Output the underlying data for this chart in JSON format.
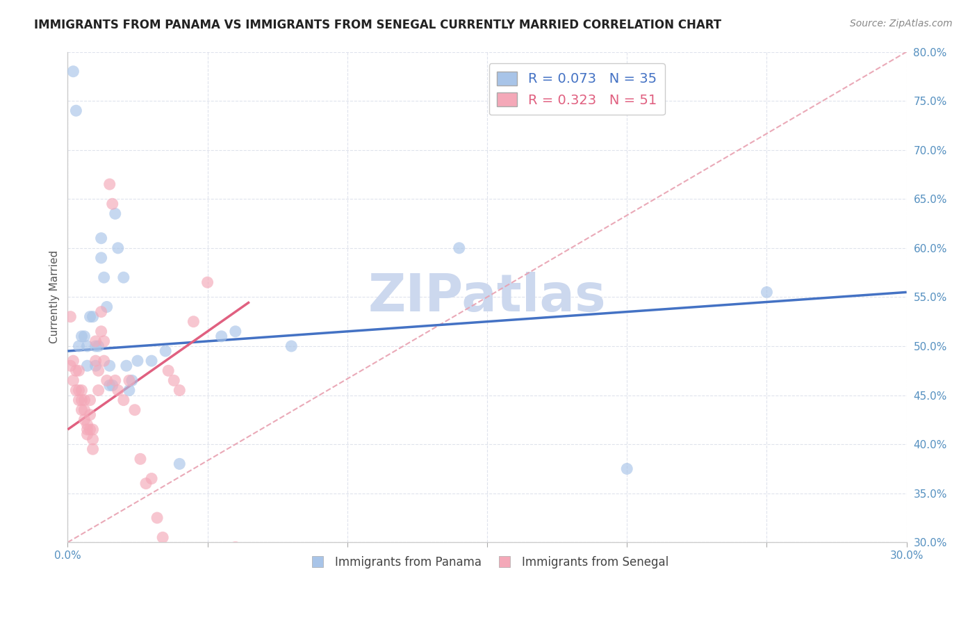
{
  "title": "IMMIGRANTS FROM PANAMA VS IMMIGRANTS FROM SENEGAL CURRENTLY MARRIED CORRELATION CHART",
  "source": "Source: ZipAtlas.com",
  "xlabel": "",
  "ylabel": "Currently Married",
  "xlim": [
    0.0,
    0.3
  ],
  "ylim": [
    0.3,
    0.8
  ],
  "xticks": [
    0.0,
    0.05,
    0.1,
    0.15,
    0.2,
    0.25,
    0.3
  ],
  "yticks": [
    0.3,
    0.35,
    0.4,
    0.45,
    0.5,
    0.55,
    0.6,
    0.65,
    0.7,
    0.75,
    0.8
  ],
  "ytick_labels": [
    "30.0%",
    "35.0%",
    "40.0%",
    "45.0%",
    "50.0%",
    "55.0%",
    "60.0%",
    "65.0%",
    "70.0%",
    "75.0%",
    "80.0%"
  ],
  "xtick_labels": [
    "0.0%",
    "",
    "",
    "",
    "",
    "",
    "30.0%"
  ],
  "panama_R": 0.073,
  "panama_N": 35,
  "senegal_R": 0.323,
  "senegal_N": 51,
  "panama_color": "#a8c4e8",
  "senegal_color": "#f4a8b8",
  "panama_line_color": "#4472c4",
  "senegal_line_color": "#e06080",
  "diagonal_color": "#e8a0b0",
  "background_color": "#ffffff",
  "watermark": "ZIPatlas",
  "watermark_color": "#ccd8ee",
  "panama_x": [
    0.002,
    0.003,
    0.004,
    0.005,
    0.006,
    0.007,
    0.007,
    0.008,
    0.009,
    0.01,
    0.01,
    0.011,
    0.012,
    0.012,
    0.013,
    0.014,
    0.015,
    0.015,
    0.016,
    0.017,
    0.018,
    0.02,
    0.021,
    0.022,
    0.023,
    0.025,
    0.03,
    0.035,
    0.04,
    0.055,
    0.06,
    0.08,
    0.14,
    0.2,
    0.25
  ],
  "panama_y": [
    0.78,
    0.74,
    0.5,
    0.51,
    0.51,
    0.5,
    0.48,
    0.53,
    0.53,
    0.5,
    0.48,
    0.5,
    0.61,
    0.59,
    0.57,
    0.54,
    0.48,
    0.46,
    0.46,
    0.635,
    0.6,
    0.57,
    0.48,
    0.455,
    0.465,
    0.485,
    0.485,
    0.495,
    0.38,
    0.51,
    0.515,
    0.5,
    0.6,
    0.375,
    0.555
  ],
  "senegal_x": [
    0.001,
    0.001,
    0.002,
    0.002,
    0.003,
    0.003,
    0.004,
    0.004,
    0.004,
    0.005,
    0.005,
    0.005,
    0.006,
    0.006,
    0.006,
    0.007,
    0.007,
    0.007,
    0.008,
    0.008,
    0.008,
    0.009,
    0.009,
    0.009,
    0.01,
    0.01,
    0.011,
    0.011,
    0.012,
    0.012,
    0.013,
    0.013,
    0.014,
    0.015,
    0.016,
    0.017,
    0.018,
    0.02,
    0.022,
    0.024,
    0.026,
    0.028,
    0.03,
    0.032,
    0.034,
    0.036,
    0.038,
    0.04,
    0.045,
    0.05,
    0.06
  ],
  "senegal_y": [
    0.53,
    0.48,
    0.485,
    0.465,
    0.475,
    0.455,
    0.475,
    0.455,
    0.445,
    0.455,
    0.445,
    0.435,
    0.445,
    0.435,
    0.425,
    0.42,
    0.415,
    0.41,
    0.445,
    0.43,
    0.415,
    0.415,
    0.405,
    0.395,
    0.505,
    0.485,
    0.475,
    0.455,
    0.535,
    0.515,
    0.505,
    0.485,
    0.465,
    0.665,
    0.645,
    0.465,
    0.455,
    0.445,
    0.465,
    0.435,
    0.385,
    0.36,
    0.365,
    0.325,
    0.305,
    0.475,
    0.465,
    0.455,
    0.525,
    0.565,
    0.295
  ],
  "panama_line_x": [
    0.0,
    0.3
  ],
  "panama_line_y": [
    0.495,
    0.555
  ],
  "senegal_line_x": [
    0.0,
    0.065
  ],
  "senegal_line_y": [
    0.415,
    0.545
  ]
}
